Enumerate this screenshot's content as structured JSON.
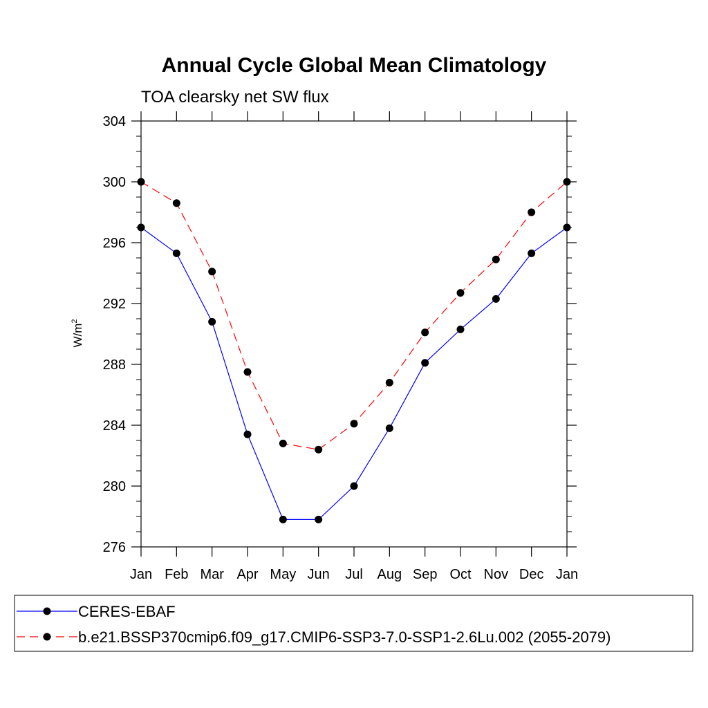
{
  "chart_data": {
    "type": "line",
    "title": "Annual Cycle Global Mean Climatology",
    "subtitle": "TOA clearsky net SW flux",
    "ylabel": "W/m",
    "ylabel_superscript": "2",
    "categories": [
      "Jan",
      "Feb",
      "Mar",
      "Apr",
      "May",
      "Jun",
      "Jul",
      "Aug",
      "Sep",
      "Oct",
      "Nov",
      "Dec",
      "Jan"
    ],
    "ylim": [
      276,
      304
    ],
    "yticks": [
      276,
      280,
      284,
      288,
      292,
      296,
      300,
      304
    ],
    "grid": false,
    "legend_position": "bottom",
    "series": [
      {
        "name": "CERES-EBAF",
        "color": "#0000ff",
        "line_style": "solid",
        "values": [
          297.0,
          295.3,
          290.8,
          283.4,
          277.8,
          277.8,
          280.0,
          283.8,
          288.1,
          290.3,
          292.3,
          295.3,
          297.0
        ]
      },
      {
        "name": "b.e21.BSSP370cmip6.f09_g17.CMIP6-SSP3-7.0-SSP1-2.6Lu.002 (2055-2079)",
        "color": "#ff0000",
        "line_style": "dashed",
        "values": [
          300.0,
          298.6,
          294.1,
          287.5,
          282.8,
          282.4,
          284.1,
          286.8,
          290.1,
          292.7,
          294.9,
          298.0,
          300.0
        ]
      }
    ]
  }
}
